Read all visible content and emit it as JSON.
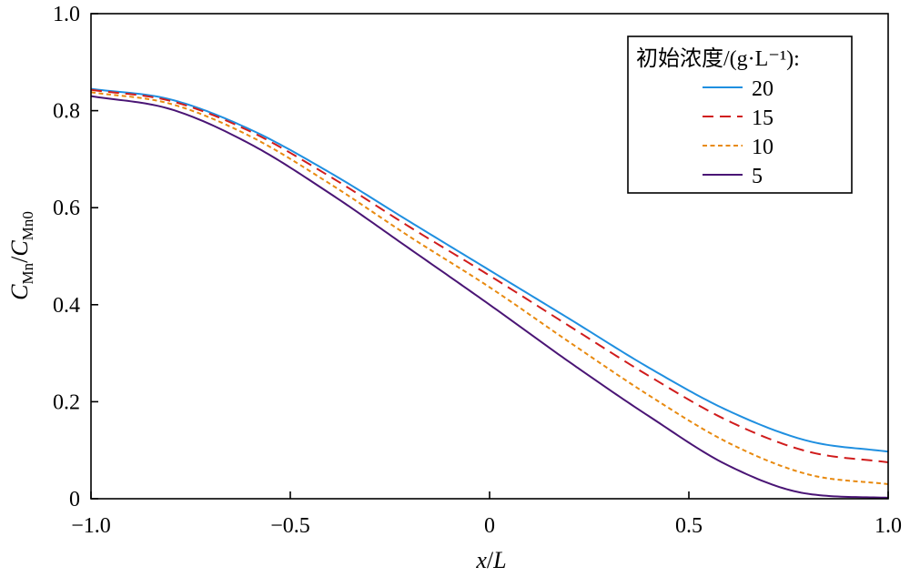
{
  "chart_data": {
    "type": "line",
    "xlabel": {
      "var": "x",
      "sep": "/",
      "ref": "L"
    },
    "ylabel": {
      "num": "C",
      "num_sub": "Mn",
      "sep": "/",
      "den": "C",
      "den_sub": "Mn0"
    },
    "xlim": [
      -1.0,
      1.0
    ],
    "ylim": [
      0,
      1.0
    ],
    "x_ticks": [
      -1.0,
      -0.5,
      0,
      0.5,
      1.0
    ],
    "x_tick_labels": [
      "−1.0",
      "−0.5",
      "0",
      "0.5",
      "1.0"
    ],
    "y_ticks": [
      0,
      0.2,
      0.4,
      0.6,
      0.8,
      1.0
    ],
    "y_tick_labels": [
      "0",
      "0.2",
      "0.4",
      "0.6",
      "0.8",
      "1.0"
    ],
    "grid": false,
    "legend": {
      "title": "初始浓度/(g·L⁻¹):",
      "position": "top-right"
    },
    "series": [
      {
        "name": "20",
        "color": "#1f8fe0",
        "style": "solid",
        "x": [
          -1.0,
          -0.8,
          -0.6,
          -0.4,
          -0.2,
          0.0,
          0.2,
          0.4,
          0.6,
          0.8,
          1.0
        ],
        "y": [
          0.845,
          0.823,
          0.761,
          0.672,
          0.571,
          0.471,
          0.371,
          0.27,
          0.181,
          0.119,
          0.097
        ]
      },
      {
        "name": "15",
        "color": "#d01c1c",
        "style": "dashed",
        "x": [
          -1.0,
          -0.8,
          -0.6,
          -0.4,
          -0.2,
          0.0,
          0.2,
          0.4,
          0.6,
          0.8,
          1.0
        ],
        "y": [
          0.843,
          0.82,
          0.757,
          0.664,
          0.56,
          0.46,
          0.356,
          0.253,
          0.16,
          0.097,
          0.075
        ]
      },
      {
        "name": "10",
        "color": "#e88a10",
        "style": "dotted",
        "x": [
          -1.0,
          -0.8,
          -0.6,
          -0.4,
          -0.2,
          0.0,
          0.2,
          0.4,
          0.6,
          0.8,
          1.0
        ],
        "y": [
          0.838,
          0.814,
          0.747,
          0.649,
          0.54,
          0.436,
          0.323,
          0.213,
          0.115,
          0.05,
          0.03
        ]
      },
      {
        "name": "5",
        "color": "#4a1575",
        "style": "solid",
        "x": [
          -1.0,
          -0.8,
          -0.6,
          -0.4,
          -0.2,
          0.0,
          0.2,
          0.4,
          0.6,
          0.8,
          1.0
        ],
        "y": [
          0.83,
          0.803,
          0.731,
          0.629,
          0.515,
          0.4,
          0.282,
          0.17,
          0.068,
          0.01,
          0.002
        ]
      }
    ]
  }
}
